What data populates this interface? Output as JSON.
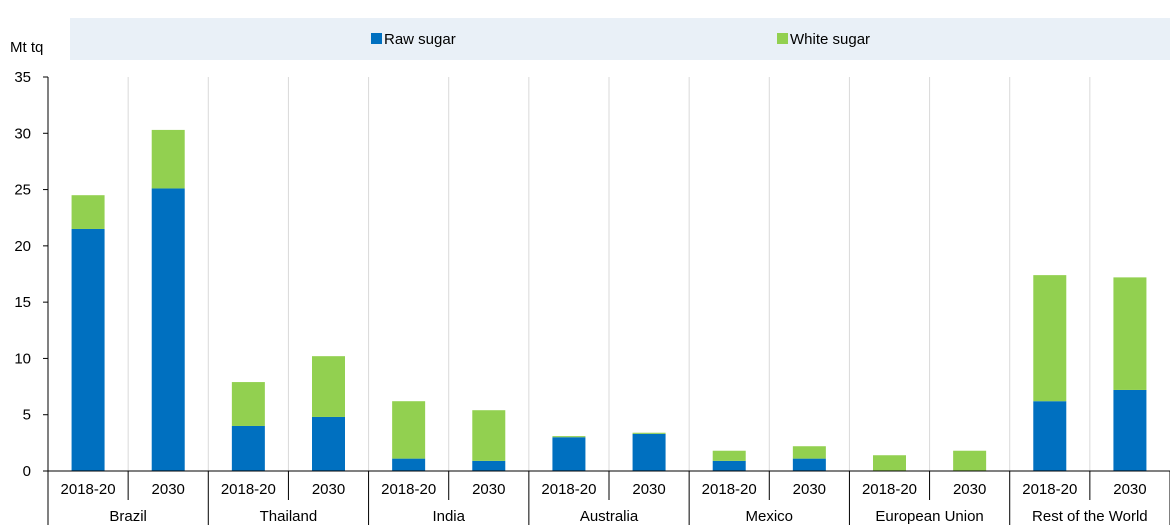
{
  "chart_data": {
    "type": "bar",
    "stacked": true,
    "ylabel": "Mt tq",
    "ylim": [
      0,
      35
    ],
    "yticks": [
      0,
      5,
      10,
      15,
      20,
      25,
      30,
      35
    ],
    "groups": [
      "Brazil",
      "Thailand",
      "India",
      "Australia",
      "Mexico",
      "European Union",
      "Rest of the World"
    ],
    "periods": [
      "2018-20",
      "2030"
    ],
    "categories": [
      "Brazil 2018-20",
      "Brazil 2030",
      "Thailand 2018-20",
      "Thailand 2030",
      "India 2018-20",
      "India 2030",
      "Australia 2018-20",
      "Australia 2030",
      "Mexico 2018-20",
      "Mexico 2030",
      "European Union 2018-20",
      "European Union 2030",
      "Rest of the World 2018-20",
      "Rest of the World 2030"
    ],
    "series": [
      {
        "name": "Raw sugar",
        "color": "#0070c0",
        "values": [
          21.5,
          25.1,
          4.0,
          4.8,
          1.1,
          0.9,
          3.0,
          3.3,
          0.9,
          1.1,
          0.0,
          0.0,
          6.2,
          7.2
        ]
      },
      {
        "name": "White sugar",
        "color": "#92d050",
        "values": [
          3.0,
          5.2,
          3.9,
          5.4,
          5.1,
          4.5,
          0.1,
          0.1,
          0.9,
          1.1,
          1.4,
          1.8,
          11.2,
          10.0
        ]
      }
    ],
    "grid": true,
    "legend_position": "top"
  },
  "colors": {
    "legend_band": "#e9f0f7",
    "axis": "#000000",
    "group_divider": "#ffffff",
    "text": "#000000"
  }
}
